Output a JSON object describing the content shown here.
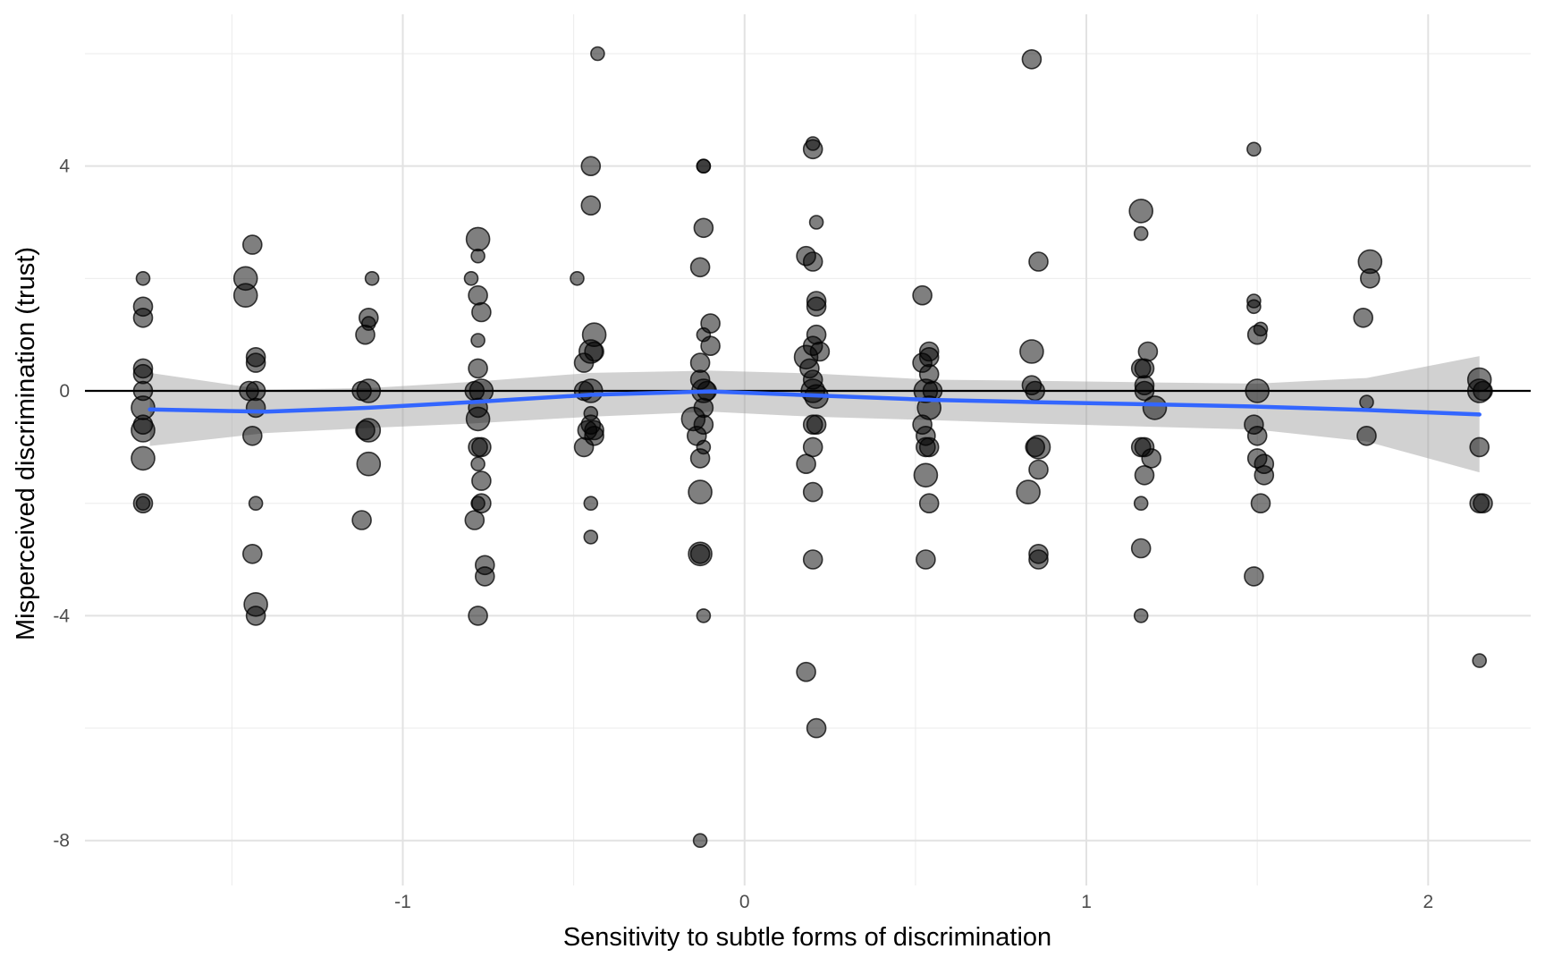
{
  "chart_data": {
    "type": "scatter",
    "title": "",
    "xlabel": "Sensitivity to subtle forms of discrimination",
    "ylabel": "Misperceived discrimination (trust)",
    "xlim": [
      -1.93,
      2.3
    ],
    "ylim": [
      -8.8,
      6.7
    ],
    "x_ticks": [
      -1,
      0,
      1,
      2
    ],
    "y_ticks": [
      -8,
      -4,
      0,
      4
    ],
    "x_tick_labels": [
      "-1",
      "0",
      "1",
      "2"
    ],
    "y_tick_labels": [
      "-8",
      "-4",
      "0",
      "4"
    ],
    "grid": true,
    "reference_line_y": 0,
    "colors": {
      "points": "#000000",
      "point_opacity": 0.5,
      "smooth_line": "#3366FF",
      "ci_band": "#999999",
      "grid": "#ebebeb",
      "zero_line": "#000000"
    },
    "smooth": {
      "x": [
        -1.74,
        -1.4,
        -1.1,
        -0.8,
        -0.45,
        -0.1,
        0.2,
        0.55,
        0.85,
        1.2,
        1.5,
        1.82,
        2.15
      ],
      "y": [
        -0.33,
        -0.37,
        -0.3,
        -0.2,
        -0.07,
        -0.01,
        -0.08,
        -0.16,
        -0.2,
        -0.24,
        -0.28,
        -0.34,
        -0.42
      ],
      "ci_lower": [
        -0.98,
        -0.75,
        -0.66,
        -0.58,
        -0.46,
        -0.37,
        -0.46,
        -0.52,
        -0.58,
        -0.64,
        -0.69,
        -0.9,
        -1.45
      ],
      "ci_upper": [
        0.32,
        0.02,
        0.05,
        0.16,
        0.32,
        0.36,
        0.31,
        0.2,
        0.18,
        0.15,
        0.13,
        0.23,
        0.62
      ]
    },
    "points": [
      {
        "x": -1.76,
        "y": 2.0,
        "s": 1
      },
      {
        "x": -1.76,
        "y": 1.5,
        "s": 2
      },
      {
        "x": -1.76,
        "y": 1.3,
        "s": 2
      },
      {
        "x": -1.76,
        "y": 0.4,
        "s": 2
      },
      {
        "x": -1.76,
        "y": 0.3,
        "s": 2
      },
      {
        "x": -1.76,
        "y": 0.0,
        "s": 2
      },
      {
        "x": -1.76,
        "y": -0.3,
        "s": 3
      },
      {
        "x": -1.76,
        "y": -0.6,
        "s": 2
      },
      {
        "x": -1.76,
        "y": -0.7,
        "s": 3
      },
      {
        "x": -1.76,
        "y": -1.2,
        "s": 3
      },
      {
        "x": -1.76,
        "y": -2.0,
        "s": 1
      },
      {
        "x": -1.76,
        "y": -2.0,
        "s": 2
      },
      {
        "x": -1.44,
        "y": 2.6,
        "s": 2
      },
      {
        "x": -1.46,
        "y": 2.0,
        "s": 3
      },
      {
        "x": -1.46,
        "y": 1.7,
        "s": 3
      },
      {
        "x": -1.43,
        "y": 0.6,
        "s": 2
      },
      {
        "x": -1.43,
        "y": 0.5,
        "s": 2
      },
      {
        "x": -1.45,
        "y": 0.0,
        "s": 2
      },
      {
        "x": -1.43,
        "y": 0.0,
        "s": 2
      },
      {
        "x": -1.43,
        "y": -0.3,
        "s": 2
      },
      {
        "x": -1.44,
        "y": -0.8,
        "s": 2
      },
      {
        "x": -1.43,
        "y": -2.0,
        "s": 1
      },
      {
        "x": -1.44,
        "y": -2.9,
        "s": 2
      },
      {
        "x": -1.43,
        "y": -3.8,
        "s": 3
      },
      {
        "x": -1.43,
        "y": -4.0,
        "s": 2
      },
      {
        "x": -1.09,
        "y": 2.0,
        "s": 1
      },
      {
        "x": -1.1,
        "y": 1.3,
        "s": 2
      },
      {
        "x": -1.1,
        "y": 1.2,
        "s": 1
      },
      {
        "x": -1.11,
        "y": 1.0,
        "s": 2
      },
      {
        "x": -1.12,
        "y": 0.0,
        "s": 2
      },
      {
        "x": -1.1,
        "y": 0.0,
        "s": 3
      },
      {
        "x": -1.1,
        "y": -0.7,
        "s": 3
      },
      {
        "x": -1.11,
        "y": -0.7,
        "s": 2
      },
      {
        "x": -1.1,
        "y": -1.3,
        "s": 3
      },
      {
        "x": -1.12,
        "y": -2.3,
        "s": 2
      },
      {
        "x": -0.8,
        "y": 2.0,
        "s": 1
      },
      {
        "x": -0.78,
        "y": 2.7,
        "s": 3
      },
      {
        "x": -0.78,
        "y": 2.4,
        "s": 1
      },
      {
        "x": -0.78,
        "y": 1.7,
        "s": 2
      },
      {
        "x": -0.77,
        "y": 1.4,
        "s": 2
      },
      {
        "x": -0.78,
        "y": 0.9,
        "s": 1
      },
      {
        "x": -0.78,
        "y": 0.4,
        "s": 2
      },
      {
        "x": -0.79,
        "y": 0.0,
        "s": 2
      },
      {
        "x": -0.77,
        "y": 0.0,
        "s": 3
      },
      {
        "x": -0.78,
        "y": -0.3,
        "s": 2
      },
      {
        "x": -0.78,
        "y": -0.5,
        "s": 3
      },
      {
        "x": -0.78,
        "y": -1.0,
        "s": 2
      },
      {
        "x": -0.77,
        "y": -1.0,
        "s": 2
      },
      {
        "x": -0.78,
        "y": -1.3,
        "s": 1
      },
      {
        "x": -0.77,
        "y": -1.6,
        "s": 2
      },
      {
        "x": -0.77,
        "y": -2.0,
        "s": 2
      },
      {
        "x": -0.78,
        "y": -2.0,
        "s": 1
      },
      {
        "x": -0.79,
        "y": -2.3,
        "s": 2
      },
      {
        "x": -0.76,
        "y": -3.1,
        "s": 2
      },
      {
        "x": -0.76,
        "y": -3.3,
        "s": 2
      },
      {
        "x": -0.78,
        "y": -4.0,
        "s": 2
      },
      {
        "x": -0.43,
        "y": 6.0,
        "s": 1
      },
      {
        "x": -0.45,
        "y": 4.0,
        "s": 2
      },
      {
        "x": -0.45,
        "y": 3.3,
        "s": 2
      },
      {
        "x": -0.49,
        "y": 2.0,
        "s": 1
      },
      {
        "x": -0.44,
        "y": 1.0,
        "s": 3
      },
      {
        "x": -0.45,
        "y": 0.7,
        "s": 3
      },
      {
        "x": -0.44,
        "y": 0.7,
        "s": 2
      },
      {
        "x": -0.47,
        "y": 0.5,
        "s": 2
      },
      {
        "x": -0.45,
        "y": 0.0,
        "s": 3
      },
      {
        "x": -0.47,
        "y": 0.0,
        "s": 2
      },
      {
        "x": -0.45,
        "y": -0.4,
        "s": 1
      },
      {
        "x": -0.45,
        "y": -0.6,
        "s": 2
      },
      {
        "x": -0.46,
        "y": -0.7,
        "s": 2
      },
      {
        "x": -0.44,
        "y": -0.7,
        "s": 2
      },
      {
        "x": -0.44,
        "y": -0.8,
        "s": 2
      },
      {
        "x": -0.47,
        "y": -1.0,
        "s": 2
      },
      {
        "x": -0.45,
        "y": -2.0,
        "s": 1
      },
      {
        "x": -0.45,
        "y": -2.6,
        "s": 1
      },
      {
        "x": -0.12,
        "y": 4.0,
        "s": 1
      },
      {
        "x": -0.12,
        "y": 4.0,
        "s": 1
      },
      {
        "x": -0.12,
        "y": 2.9,
        "s": 2
      },
      {
        "x": -0.13,
        "y": 2.2,
        "s": 2
      },
      {
        "x": -0.1,
        "y": 1.2,
        "s": 2
      },
      {
        "x": -0.12,
        "y": 1.0,
        "s": 1
      },
      {
        "x": -0.1,
        "y": 0.8,
        "s": 2
      },
      {
        "x": -0.13,
        "y": 0.5,
        "s": 2
      },
      {
        "x": -0.13,
        "y": 0.2,
        "s": 2
      },
      {
        "x": -0.12,
        "y": 0.0,
        "s": 3
      },
      {
        "x": -0.11,
        "y": 0.0,
        "s": 2
      },
      {
        "x": -0.12,
        "y": -0.3,
        "s": 2
      },
      {
        "x": -0.15,
        "y": -0.5,
        "s": 3
      },
      {
        "x": -0.12,
        "y": -0.6,
        "s": 2
      },
      {
        "x": -0.14,
        "y": -0.8,
        "s": 2
      },
      {
        "x": -0.12,
        "y": -1.0,
        "s": 1
      },
      {
        "x": -0.13,
        "y": -1.2,
        "s": 2
      },
      {
        "x": -0.13,
        "y": -1.8,
        "s": 3
      },
      {
        "x": -0.13,
        "y": -2.9,
        "s": 2
      },
      {
        "x": -0.13,
        "y": -2.9,
        "s": 3
      },
      {
        "x": -0.12,
        "y": -4.0,
        "s": 1
      },
      {
        "x": -0.13,
        "y": -8.0,
        "s": 1
      },
      {
        "x": 0.2,
        "y": 4.4,
        "s": 1
      },
      {
        "x": 0.2,
        "y": 4.3,
        "s": 2
      },
      {
        "x": 0.21,
        "y": 3.0,
        "s": 1
      },
      {
        "x": 0.18,
        "y": 2.4,
        "s": 2
      },
      {
        "x": 0.2,
        "y": 2.3,
        "s": 2
      },
      {
        "x": 0.21,
        "y": 1.6,
        "s": 2
      },
      {
        "x": 0.21,
        "y": 1.5,
        "s": 2
      },
      {
        "x": 0.21,
        "y": 1.0,
        "s": 2
      },
      {
        "x": 0.2,
        "y": 0.8,
        "s": 2
      },
      {
        "x": 0.22,
        "y": 0.7,
        "s": 2
      },
      {
        "x": 0.18,
        "y": 0.6,
        "s": 3
      },
      {
        "x": 0.19,
        "y": 0.4,
        "s": 2
      },
      {
        "x": 0.2,
        "y": 0.2,
        "s": 2
      },
      {
        "x": 0.2,
        "y": 0.0,
        "s": 3
      },
      {
        "x": 0.21,
        "y": -0.1,
        "s": 3
      },
      {
        "x": 0.2,
        "y": -0.6,
        "s": 2
      },
      {
        "x": 0.21,
        "y": -0.6,
        "s": 2
      },
      {
        "x": 0.2,
        "y": -1.0,
        "s": 2
      },
      {
        "x": 0.18,
        "y": -1.3,
        "s": 2
      },
      {
        "x": 0.2,
        "y": -1.8,
        "s": 2
      },
      {
        "x": 0.2,
        "y": -3.0,
        "s": 2
      },
      {
        "x": 0.18,
        "y": -5.0,
        "s": 2
      },
      {
        "x": 0.21,
        "y": -6.0,
        "s": 2
      },
      {
        "x": 0.52,
        "y": 1.7,
        "s": 2
      },
      {
        "x": 0.54,
        "y": 0.7,
        "s": 2
      },
      {
        "x": 0.54,
        "y": 0.6,
        "s": 2
      },
      {
        "x": 0.52,
        "y": 0.5,
        "s": 2
      },
      {
        "x": 0.54,
        "y": 0.3,
        "s": 2
      },
      {
        "x": 0.53,
        "y": 0.0,
        "s": 3
      },
      {
        "x": 0.55,
        "y": 0.0,
        "s": 2
      },
      {
        "x": 0.54,
        "y": -0.3,
        "s": 3
      },
      {
        "x": 0.52,
        "y": -0.6,
        "s": 2
      },
      {
        "x": 0.53,
        "y": -0.8,
        "s": 2
      },
      {
        "x": 0.53,
        "y": -1.0,
        "s": 2
      },
      {
        "x": 0.54,
        "y": -1.0,
        "s": 2
      },
      {
        "x": 0.53,
        "y": -1.5,
        "s": 3
      },
      {
        "x": 0.54,
        "y": -2.0,
        "s": 2
      },
      {
        "x": 0.53,
        "y": -3.0,
        "s": 2
      },
      {
        "x": 0.84,
        "y": 5.9,
        "s": 2
      },
      {
        "x": 0.86,
        "y": 2.3,
        "s": 2
      },
      {
        "x": 0.84,
        "y": 0.7,
        "s": 3
      },
      {
        "x": 0.84,
        "y": 0.1,
        "s": 2
      },
      {
        "x": 0.85,
        "y": 0.0,
        "s": 2
      },
      {
        "x": 0.86,
        "y": -1.0,
        "s": 3
      },
      {
        "x": 0.85,
        "y": -1.0,
        "s": 2
      },
      {
        "x": 0.86,
        "y": -1.4,
        "s": 2
      },
      {
        "x": 0.83,
        "y": -1.8,
        "s": 3
      },
      {
        "x": 0.86,
        "y": -2.9,
        "s": 2
      },
      {
        "x": 0.86,
        "y": -3.0,
        "s": 2
      },
      {
        "x": 1.16,
        "y": 3.2,
        "s": 3
      },
      {
        "x": 1.16,
        "y": 2.8,
        "s": 1
      },
      {
        "x": 1.18,
        "y": 0.7,
        "s": 2
      },
      {
        "x": 1.17,
        "y": 0.4,
        "s": 2
      },
      {
        "x": 1.16,
        "y": 0.4,
        "s": 2
      },
      {
        "x": 1.17,
        "y": 0.1,
        "s": 2
      },
      {
        "x": 1.17,
        "y": 0.0,
        "s": 2
      },
      {
        "x": 1.2,
        "y": -0.3,
        "s": 3
      },
      {
        "x": 1.16,
        "y": -1.0,
        "s": 2
      },
      {
        "x": 1.17,
        "y": -1.0,
        "s": 2
      },
      {
        "x": 1.19,
        "y": -1.2,
        "s": 2
      },
      {
        "x": 1.17,
        "y": -1.5,
        "s": 2
      },
      {
        "x": 1.16,
        "y": -2.0,
        "s": 1
      },
      {
        "x": 1.16,
        "y": -2.8,
        "s": 2
      },
      {
        "x": 1.16,
        "y": -4.0,
        "s": 1
      },
      {
        "x": 1.49,
        "y": 4.3,
        "s": 1
      },
      {
        "x": 1.49,
        "y": 1.6,
        "s": 1
      },
      {
        "x": 1.49,
        "y": 1.5,
        "s": 1
      },
      {
        "x": 1.51,
        "y": 1.1,
        "s": 1
      },
      {
        "x": 1.5,
        "y": 1.0,
        "s": 2
      },
      {
        "x": 1.5,
        "y": 0.0,
        "s": 3
      },
      {
        "x": 1.49,
        "y": -0.6,
        "s": 2
      },
      {
        "x": 1.5,
        "y": -0.8,
        "s": 2
      },
      {
        "x": 1.5,
        "y": -1.2,
        "s": 2
      },
      {
        "x": 1.52,
        "y": -1.3,
        "s": 2
      },
      {
        "x": 1.52,
        "y": -1.5,
        "s": 2
      },
      {
        "x": 1.51,
        "y": -2.0,
        "s": 2
      },
      {
        "x": 1.49,
        "y": -3.3,
        "s": 2
      },
      {
        "x": 1.83,
        "y": 2.3,
        "s": 3
      },
      {
        "x": 1.83,
        "y": 2.0,
        "s": 2
      },
      {
        "x": 1.81,
        "y": 1.3,
        "s": 2
      },
      {
        "x": 1.82,
        "y": -0.2,
        "s": 1
      },
      {
        "x": 1.82,
        "y": -0.8,
        "s": 2
      },
      {
        "x": 2.15,
        "y": 0.2,
        "s": 3
      },
      {
        "x": 2.15,
        "y": 0.0,
        "s": 3
      },
      {
        "x": 2.16,
        "y": 0.0,
        "s": 2
      },
      {
        "x": 2.15,
        "y": -1.0,
        "s": 2
      },
      {
        "x": 2.15,
        "y": -2.0,
        "s": 2
      },
      {
        "x": 2.16,
        "y": -2.0,
        "s": 2
      },
      {
        "x": 2.15,
        "y": -4.8,
        "s": 1
      }
    ]
  }
}
